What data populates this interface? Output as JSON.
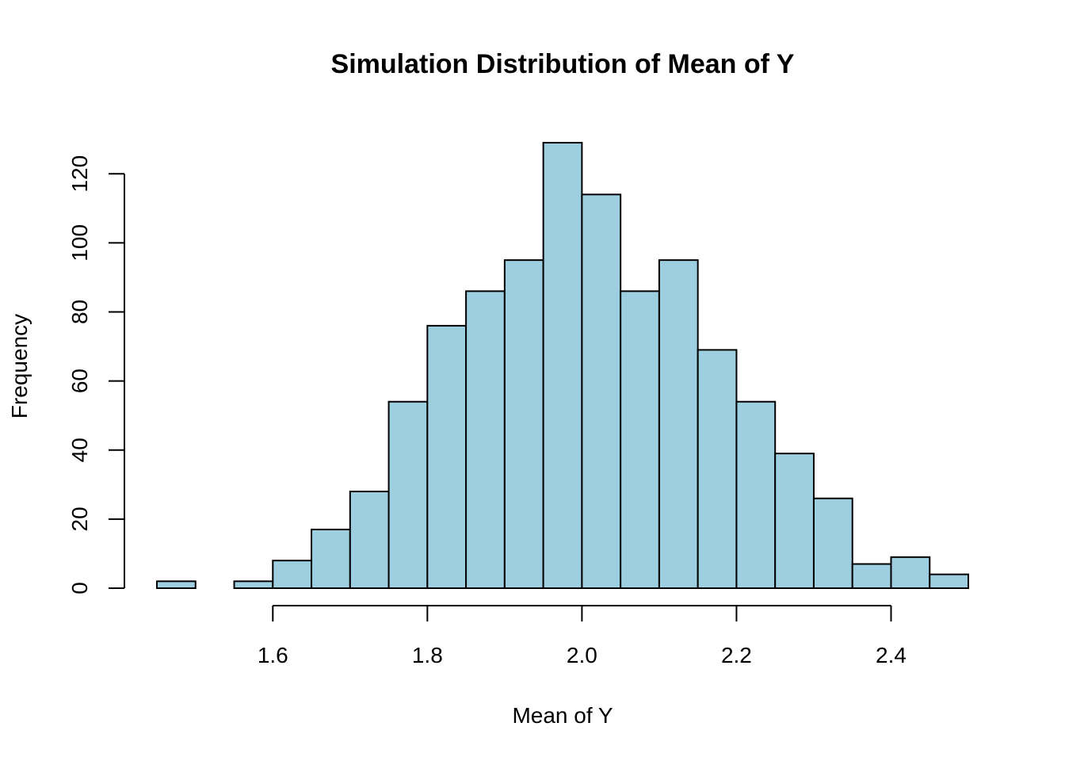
{
  "chart_data": {
    "type": "bar",
    "title": "Simulation Distribution of Mean of Y",
    "xlabel": "Mean of Y",
    "ylabel": "Frequency",
    "bin_edges": [
      1.45,
      1.5,
      1.55,
      1.6,
      1.65,
      1.7,
      1.75,
      1.8,
      1.85,
      1.9,
      1.95,
      2.0,
      2.05,
      2.1,
      2.15,
      2.2,
      2.25,
      2.3,
      2.35,
      2.4,
      2.45,
      2.5
    ],
    "values": [
      2,
      0,
      2,
      8,
      17,
      28,
      54,
      76,
      86,
      95,
      129,
      114,
      86,
      95,
      69,
      54,
      39,
      26,
      7,
      9,
      4
    ],
    "xticks": [
      "1.6",
      "1.8",
      "2.0",
      "2.2",
      "2.4"
    ],
    "xtick_values": [
      1.6,
      1.8,
      2.0,
      2.2,
      2.4
    ],
    "yticks": [
      "0",
      "20",
      "40",
      "60",
      "80",
      "100",
      "120"
    ],
    "ytick_values": [
      0,
      20,
      40,
      60,
      80,
      100,
      120
    ],
    "xlim": [
      1.45,
      2.5
    ],
    "ylim": [
      0,
      129
    ],
    "bar_color": "#9ECFE0",
    "edge_color": "#000000",
    "grid": false,
    "legend": "none"
  }
}
